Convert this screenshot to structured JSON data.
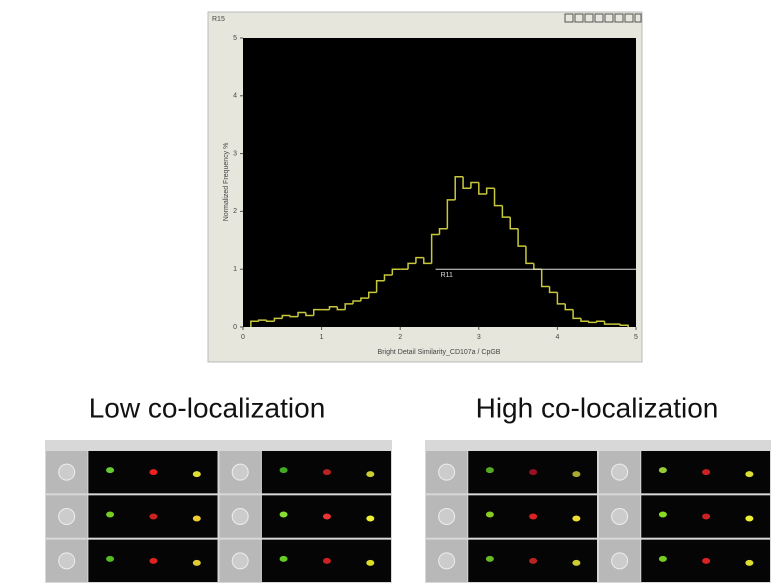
{
  "chart_data": {
    "type": "histogram",
    "title": "R15",
    "xlabel": "Bright Detail Similarity_CD107a / CpGB",
    "ylabel": "Normalized Frequency %",
    "bins": [
      0.1,
      0.2,
      0.3,
      0.4,
      0.5,
      0.6,
      0.7,
      0.8,
      0.9,
      1.0,
      1.1,
      1.2,
      1.3,
      1.4,
      1.5,
      1.6,
      1.7,
      1.8,
      1.9,
      2.0,
      2.1,
      2.2,
      2.3,
      2.4,
      2.5,
      2.6,
      2.7,
      2.8,
      2.9,
      3.0,
      3.1,
      3.2,
      3.3,
      3.4,
      3.5,
      3.6,
      3.7,
      3.8,
      3.9,
      4.0,
      4.1,
      4.2,
      4.3,
      4.4,
      4.5,
      4.6,
      4.7,
      4.8,
      4.9
    ],
    "values": [
      0.1,
      0.12,
      0.1,
      0.15,
      0.2,
      0.18,
      0.25,
      0.2,
      0.3,
      0.3,
      0.35,
      0.3,
      0.4,
      0.45,
      0.5,
      0.6,
      0.8,
      0.9,
      1.0,
      1.0,
      1.1,
      1.2,
      1.1,
      1.6,
      1.7,
      2.2,
      2.6,
      2.4,
      2.5,
      2.3,
      2.4,
      2.1,
      1.9,
      1.7,
      1.4,
      1.1,
      1.0,
      0.7,
      0.6,
      0.4,
      0.3,
      0.15,
      0.1,
      0.08,
      0.1,
      0.05,
      0.05,
      0.03
    ],
    "color": "#c8c83c",
    "xlim": [
      0,
      5
    ],
    "ylim": [
      0,
      5
    ],
    "xticks": [
      0,
      1,
      2,
      3,
      4,
      5
    ],
    "yticks": [
      0,
      1,
      2,
      3,
      4,
      5
    ],
    "region": {
      "label": "R11",
      "x": [
        2.45,
        5
      ],
      "y": 1
    }
  },
  "panels": [
    {
      "title": "Low co-localization"
    },
    {
      "title": "High co-localization"
    }
  ]
}
